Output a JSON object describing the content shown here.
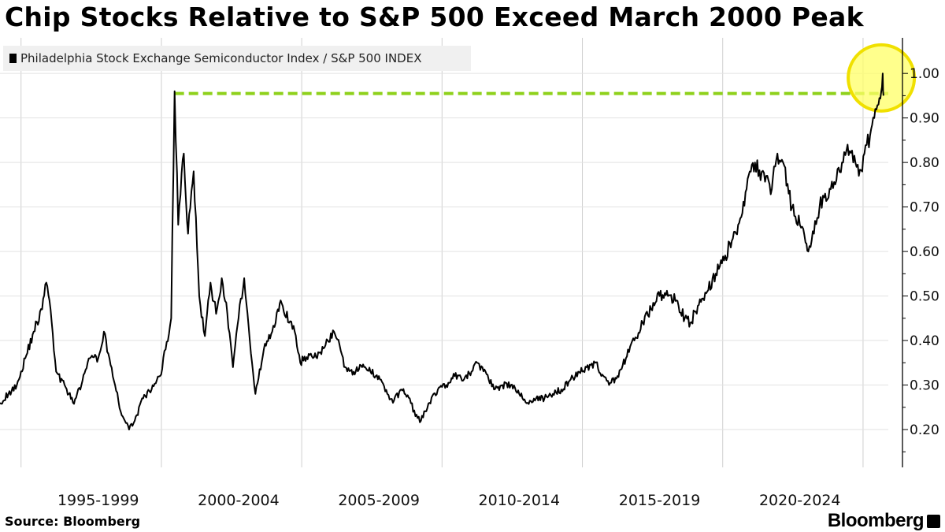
{
  "title": "Chip Stocks Relative to S&P 500 Exceed March 2000 Peak",
  "source": "Source: Bloomberg",
  "brand": "Bloomberg",
  "chart_data": {
    "type": "line",
    "title": "Chip Stocks Relative to S&P 500 Exceed March 2000 Peak",
    "legend": "top-left",
    "grid": true,
    "series": [
      {
        "name": "Philadelphia Stock Exchange Semiconductor Index / S&P 500 INDEX",
        "color": "#000000",
        "points": [
          [
            1994.0,
            0.26
          ],
          [
            1994.3,
            0.28
          ],
          [
            1994.6,
            0.3
          ],
          [
            1994.9,
            0.36
          ],
          [
            1995.2,
            0.42
          ],
          [
            1995.5,
            0.47
          ],
          [
            1995.65,
            0.53
          ],
          [
            1995.8,
            0.47
          ],
          [
            1996.0,
            0.33
          ],
          [
            1996.3,
            0.3
          ],
          [
            1996.6,
            0.26
          ],
          [
            1996.9,
            0.3
          ],
          [
            1997.2,
            0.36
          ],
          [
            1997.5,
            0.36
          ],
          [
            1997.7,
            0.42
          ],
          [
            1997.9,
            0.36
          ],
          [
            1998.1,
            0.3
          ],
          [
            1998.3,
            0.24
          ],
          [
            1998.6,
            0.2
          ],
          [
            1998.8,
            0.22
          ],
          [
            1999.1,
            0.27
          ],
          [
            1999.4,
            0.29
          ],
          [
            1999.7,
            0.32
          ],
          [
            1999.9,
            0.38
          ],
          [
            2000.1,
            0.45
          ],
          [
            2000.22,
            0.96
          ],
          [
            2000.35,
            0.66
          ],
          [
            2000.55,
            0.82
          ],
          [
            2000.7,
            0.64
          ],
          [
            2000.9,
            0.78
          ],
          [
            2001.1,
            0.5
          ],
          [
            2001.3,
            0.41
          ],
          [
            2001.5,
            0.53
          ],
          [
            2001.7,
            0.46
          ],
          [
            2001.9,
            0.54
          ],
          [
            2002.1,
            0.46
          ],
          [
            2002.3,
            0.34
          ],
          [
            2002.5,
            0.45
          ],
          [
            2002.7,
            0.54
          ],
          [
            2002.9,
            0.4
          ],
          [
            2003.1,
            0.28
          ],
          [
            2003.4,
            0.38
          ],
          [
            2003.7,
            0.42
          ],
          [
            2003.9,
            0.47
          ],
          [
            2004.0,
            0.49
          ],
          [
            2004.3,
            0.44
          ],
          [
            2004.5,
            0.42
          ],
          [
            2004.7,
            0.35
          ],
          [
            2005.0,
            0.37
          ],
          [
            2005.3,
            0.36
          ],
          [
            2005.6,
            0.39
          ],
          [
            2005.9,
            0.42
          ],
          [
            2006.1,
            0.39
          ],
          [
            2006.3,
            0.34
          ],
          [
            2006.6,
            0.33
          ],
          [
            2006.9,
            0.34
          ],
          [
            2007.2,
            0.33
          ],
          [
            2007.5,
            0.32
          ],
          [
            2007.8,
            0.28
          ],
          [
            2008.0,
            0.26
          ],
          [
            2008.3,
            0.29
          ],
          [
            2008.6,
            0.27
          ],
          [
            2008.8,
            0.23
          ],
          [
            2009.0,
            0.22
          ],
          [
            2009.3,
            0.26
          ],
          [
            2009.6,
            0.29
          ],
          [
            2009.9,
            0.3
          ],
          [
            2010.2,
            0.32
          ],
          [
            2010.5,
            0.31
          ],
          [
            2010.8,
            0.33
          ],
          [
            2011.0,
            0.35
          ],
          [
            2011.3,
            0.33
          ],
          [
            2011.6,
            0.29
          ],
          [
            2011.9,
            0.3
          ],
          [
            2012.2,
            0.3
          ],
          [
            2012.5,
            0.28
          ],
          [
            2012.8,
            0.26
          ],
          [
            2013.1,
            0.27
          ],
          [
            2013.4,
            0.27
          ],
          [
            2013.7,
            0.28
          ],
          [
            2014.0,
            0.29
          ],
          [
            2014.3,
            0.31
          ],
          [
            2014.6,
            0.33
          ],
          [
            2014.9,
            0.34
          ],
          [
            2015.2,
            0.35
          ],
          [
            2015.5,
            0.32
          ],
          [
            2015.7,
            0.3
          ],
          [
            2016.0,
            0.32
          ],
          [
            2016.3,
            0.36
          ],
          [
            2016.6,
            0.4
          ],
          [
            2016.9,
            0.44
          ],
          [
            2017.2,
            0.47
          ],
          [
            2017.5,
            0.5
          ],
          [
            2017.8,
            0.5
          ],
          [
            2018.1,
            0.49
          ],
          [
            2018.4,
            0.45
          ],
          [
            2018.6,
            0.44
          ],
          [
            2018.9,
            0.48
          ],
          [
            2019.2,
            0.51
          ],
          [
            2019.5,
            0.55
          ],
          [
            2019.8,
            0.58
          ],
          [
            2020.0,
            0.62
          ],
          [
            2020.3,
            0.66
          ],
          [
            2020.6,
            0.74
          ],
          [
            2020.9,
            0.8
          ],
          [
            2021.1,
            0.76
          ],
          [
            2021.3,
            0.77
          ],
          [
            2021.5,
            0.74
          ],
          [
            2021.7,
            0.82
          ],
          [
            2021.9,
            0.8
          ],
          [
            2022.1,
            0.73
          ],
          [
            2022.3,
            0.68
          ],
          [
            2022.5,
            0.66
          ],
          [
            2022.7,
            0.62
          ],
          [
            2022.8,
            0.6
          ],
          [
            2023.0,
            0.64
          ],
          [
            2023.2,
            0.7
          ],
          [
            2023.4,
            0.73
          ],
          [
            2023.6,
            0.74
          ],
          [
            2023.8,
            0.76
          ],
          [
            2024.0,
            0.8
          ],
          [
            2024.2,
            0.84
          ],
          [
            2024.4,
            0.8
          ],
          [
            2024.6,
            0.77
          ],
          [
            2024.8,
            0.82
          ],
          [
            2025.0,
            0.86
          ],
          [
            2025.15,
            0.9
          ],
          [
            2025.3,
            0.93
          ],
          [
            2025.4,
            0.96
          ],
          [
            2025.45,
            1.0
          ],
          [
            2025.48,
            0.95
          ]
        ]
      }
    ],
    "reference_line": {
      "y": 0.955,
      "color": "#8fd11c",
      "style": "dashed"
    },
    "highlight_circle": {
      "x": 2025.4,
      "y": 0.99,
      "color": "#ffff66"
    },
    "y_ticks": [
      "0.20",
      "0.30",
      "0.40",
      "0.50",
      "0.60",
      "0.70",
      "0.80",
      "0.90",
      "1.00"
    ],
    "y_tick_values": [
      0.2,
      0.3,
      0.4,
      0.5,
      0.6,
      0.7,
      0.8,
      0.9,
      1.0
    ],
    "ylim": [
      0.115,
      1.08
    ],
    "xlim": [
      1994.0,
      2025.65
    ],
    "x_ticks": [
      "1995-1999",
      "2000-2004",
      "2005-2009",
      "2010-2014",
      "2015-2019",
      "2020-2024"
    ],
    "x_tick_centers": [
      1997.5,
      2002.5,
      2007.5,
      2012.5,
      2017.5,
      2022.5
    ],
    "x_gridlines": [
      1994.75,
      1999.75,
      2004.75,
      2009.75,
      2014.75,
      2019.75,
      2024.75
    ]
  }
}
